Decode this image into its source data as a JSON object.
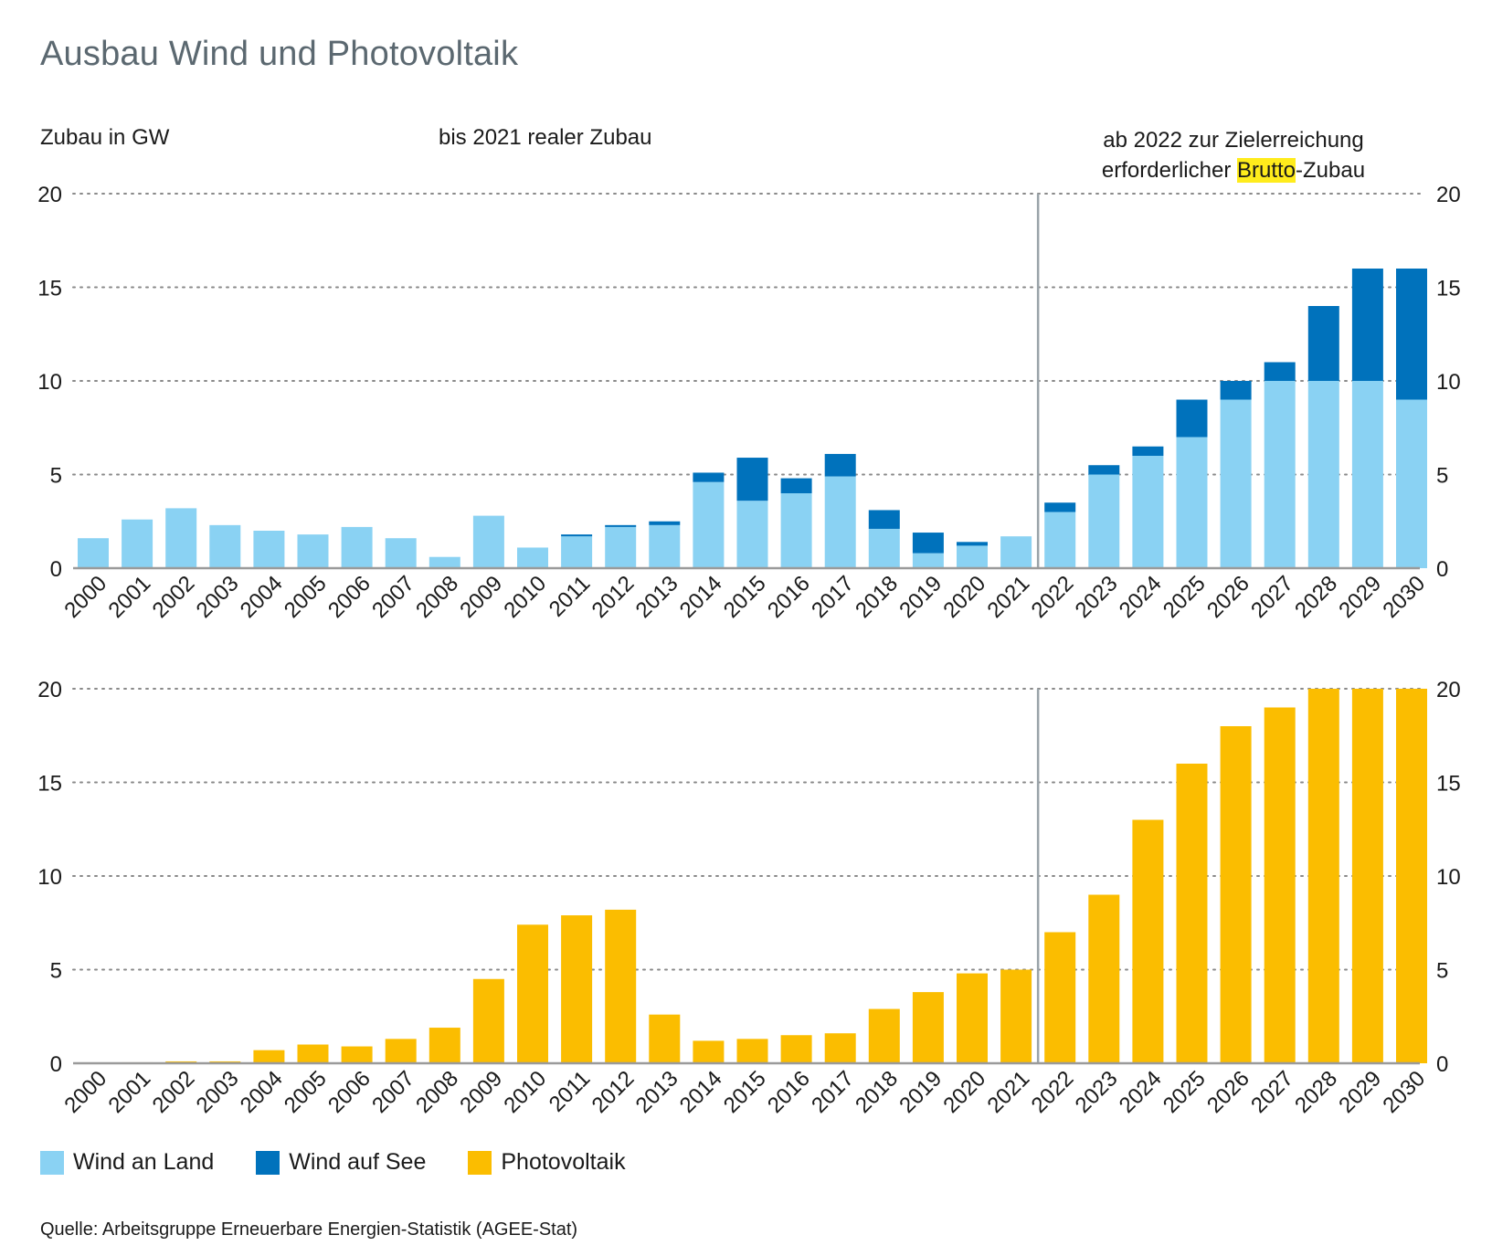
{
  "title": "Ausbau Wind und Photovoltaik",
  "unit_label": "Zubau in GW",
  "note_left": "bis 2021 realer Zubau",
  "note_right": {
    "line1": "ab 2022 zur Zielerreichung",
    "line2_pre": "erforderlicher ",
    "line2_highlight": "Brutto",
    "line2_post": "-Zubau"
  },
  "legend": [
    {
      "label": "Wind an Land",
      "color": "#8ad2f3"
    },
    {
      "label": "Wind auf See",
      "color": "#0072bc"
    },
    {
      "label": "Photovoltaik",
      "color": "#fbbd00"
    }
  ],
  "source": "Quelle: Arbeitsgruppe Erneuerbare Energien-Statistik (AGEE-Stat)",
  "chart_data": [
    {
      "type": "bar",
      "stacked": true,
      "categories": [
        "2000",
        "2001",
        "2002",
        "2003",
        "2004",
        "2005",
        "2006",
        "2007",
        "2008",
        "2009",
        "2010",
        "2011",
        "2012",
        "2013",
        "2014",
        "2015",
        "2016",
        "2017",
        "2018",
        "2019",
        "2020",
        "2021",
        "2022",
        "2023",
        "2024",
        "2025",
        "2026",
        "2027",
        "2028",
        "2029",
        "2030"
      ],
      "series": [
        {
          "name": "Wind an Land",
          "color": "#8ad2f3",
          "values": [
            1.6,
            2.6,
            3.2,
            2.3,
            2.0,
            1.8,
            2.2,
            1.6,
            0.6,
            2.8,
            1.1,
            1.7,
            2.2,
            2.3,
            4.6,
            3.6,
            4.0,
            4.9,
            2.1,
            0.8,
            1.2,
            1.7,
            3.0,
            5.0,
            6.0,
            7.0,
            9.0,
            10.0,
            10.0,
            10.0,
            9.0
          ]
        },
        {
          "name": "Wind auf See",
          "color": "#0072bc",
          "values": [
            0,
            0,
            0,
            0,
            0,
            0,
            0,
            0,
            0,
            0,
            0,
            0.1,
            0.1,
            0.2,
            0.5,
            2.3,
            0.8,
            1.2,
            1.0,
            1.1,
            0.2,
            0,
            0.5,
            0.5,
            0.5,
            2.0,
            1.0,
            1.0,
            4.0,
            6.0,
            7.0
          ]
        }
      ],
      "ylim": [
        0,
        20
      ],
      "yticks": [
        0,
        5,
        10,
        15,
        20
      ],
      "grid": true,
      "divider_after": "2021"
    },
    {
      "type": "bar",
      "categories": [
        "2000",
        "2001",
        "2002",
        "2003",
        "2004",
        "2005",
        "2006",
        "2007",
        "2008",
        "2009",
        "2010",
        "2011",
        "2012",
        "2013",
        "2014",
        "2015",
        "2016",
        "2017",
        "2018",
        "2019",
        "2020",
        "2021",
        "2022",
        "2023",
        "2024",
        "2025",
        "2026",
        "2027",
        "2028",
        "2029",
        "2030"
      ],
      "series": [
        {
          "name": "Photovoltaik",
          "color": "#fbbd00",
          "values": [
            0.0,
            0.05,
            0.1,
            0.1,
            0.7,
            1.0,
            0.9,
            1.3,
            1.9,
            4.5,
            7.4,
            7.9,
            8.2,
            2.6,
            1.2,
            1.3,
            1.5,
            1.6,
            2.9,
            3.8,
            4.8,
            5.0,
            7.0,
            9.0,
            13.0,
            16.0,
            18.0,
            19.0,
            20.0,
            20.0,
            20.0
          ]
        }
      ],
      "ylim": [
        0,
        20
      ],
      "yticks": [
        0,
        5,
        10,
        15,
        20
      ],
      "grid": true,
      "divider_after": "2021"
    }
  ]
}
